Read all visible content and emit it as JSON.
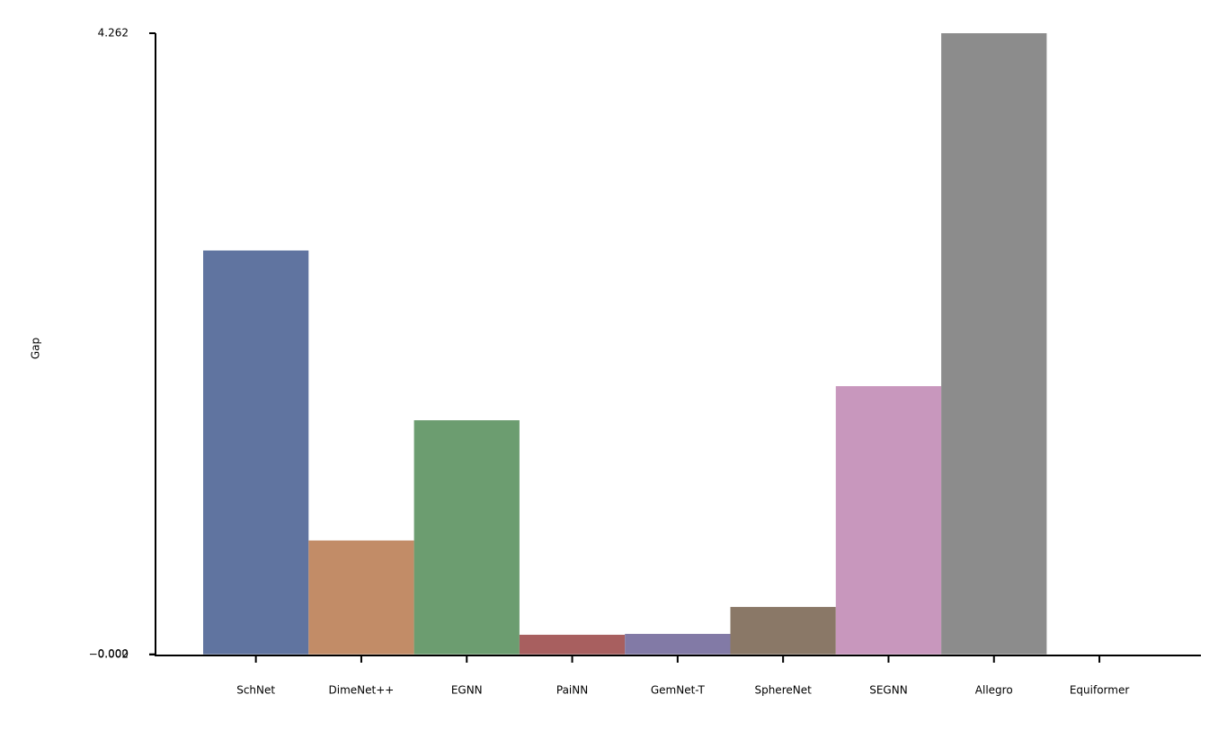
{
  "chart_data": {
    "type": "bar",
    "ylabel": "Gap",
    "categories": [
      "SchNet",
      "DimeNet++",
      "EGNN",
      "PaiNN",
      "GemNet-T",
      "SphereNet",
      "SEGNN",
      "Allegro",
      "Equiformer"
    ],
    "values": [
      2.771,
      0.781,
      1.606,
      0.134,
      0.14,
      0.325,
      1.84,
      4.262,
      0
    ],
    "colors": [
      "#6074a0",
      "#c28c67",
      "#6c9d70",
      "#a85f5f",
      "#827aa6",
      "#8a7867",
      "#c897bd",
      "#8c8c8c",
      "#c8c66f"
    ],
    "ylim": [
      -0.002,
      4.262
    ],
    "yticks": [
      {
        "value": -0.002,
        "label": "−0.002"
      },
      {
        "value": 0,
        "label": "0.000"
      },
      4.262
    ]
  }
}
